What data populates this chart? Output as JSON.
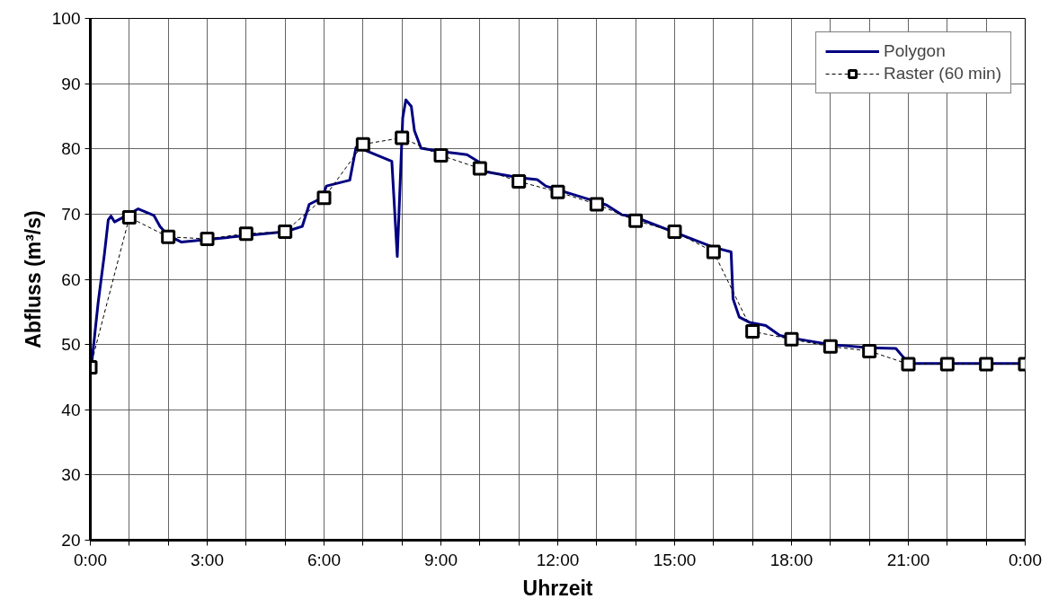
{
  "chart_data": {
    "type": "line",
    "xlabel": "Uhrzeit",
    "ylabel": "Abfluss (m³/s)",
    "xlim": [
      0,
      24
    ],
    "ylim": [
      20,
      100
    ],
    "xticks": [
      {
        "value": 0,
        "label": "0:00"
      },
      {
        "value": 1,
        "label": null
      },
      {
        "value": 2,
        "label": null
      },
      {
        "value": 3,
        "label": "3:00"
      },
      {
        "value": 4,
        "label": null
      },
      {
        "value": 5,
        "label": null
      },
      {
        "value": 6,
        "label": "6:00"
      },
      {
        "value": 7,
        "label": null
      },
      {
        "value": 8,
        "label": null
      },
      {
        "value": 9,
        "label": "9:00"
      },
      {
        "value": 10,
        "label": null
      },
      {
        "value": 11,
        "label": null
      },
      {
        "value": 12,
        "label": "12:00"
      },
      {
        "value": 13,
        "label": null
      },
      {
        "value": 14,
        "label": null
      },
      {
        "value": 15,
        "label": "15:00"
      },
      {
        "value": 16,
        "label": null
      },
      {
        "value": 17,
        "label": null
      },
      {
        "value": 18,
        "label": "18:00"
      },
      {
        "value": 19,
        "label": null
      },
      {
        "value": 20,
        "label": null
      },
      {
        "value": 21,
        "label": "21:00"
      },
      {
        "value": 22,
        "label": null
      },
      {
        "value": 23,
        "label": null
      },
      {
        "value": 24,
        "label": "0:00"
      }
    ],
    "yticks": [
      20,
      30,
      40,
      50,
      60,
      70,
      80,
      90,
      100
    ],
    "grid": true,
    "legend": "top right",
    "series": [
      {
        "name": "Polygon",
        "color": "#000080",
        "marker": "none",
        "line_style": "solid",
        "x": [
          0.04,
          0.2,
          0.36,
          0.46,
          0.53,
          0.62,
          1.0,
          1.23,
          1.63,
          1.79,
          1.98,
          2.34,
          5.0,
          5.44,
          5.62,
          5.95,
          6.06,
          6.66,
          6.82,
          7.0,
          7.74,
          7.88,
          8.02,
          8.1,
          8.24,
          8.32,
          8.49,
          9.0,
          9.67,
          10.0,
          10.15,
          11.0,
          11.47,
          11.69,
          13.0,
          13.25,
          13.64,
          14.0,
          16.0,
          16.45,
          16.5,
          16.66,
          16.92,
          17.34,
          17.7,
          18.0,
          19.0,
          20.0,
          20.68,
          20.88,
          21.0,
          24.0
        ],
        "values": [
          47.4,
          56.4,
          63.8,
          69.1,
          69.7,
          68.8,
          70.0,
          70.8,
          69.8,
          68.1,
          66.8,
          65.7,
          67.3,
          68.1,
          71.5,
          72.5,
          74.3,
          75.2,
          80.2,
          79.9,
          78.1,
          63.5,
          84.8,
          87.5,
          86.5,
          82.8,
          80.1,
          79.6,
          79.1,
          77.9,
          76.5,
          75.6,
          75.3,
          74.3,
          71.9,
          71.4,
          69.9,
          69.5,
          64.9,
          64.2,
          57.0,
          54.2,
          53.4,
          52.9,
          51.4,
          51.0,
          50.0,
          49.5,
          49.4,
          48.0,
          47.1,
          47.1
        ]
      },
      {
        "name": "Raster (60 min)",
        "color": "#000000",
        "marker": "square",
        "line_style": "dashed",
        "x": [
          0,
          1,
          2,
          3,
          4,
          5,
          6,
          7,
          8,
          9,
          10,
          11,
          12,
          13,
          14,
          15,
          16,
          17,
          18,
          19,
          20,
          21,
          22,
          23,
          24
        ],
        "values": [
          46.5,
          69.5,
          66.5,
          66.2,
          67,
          67.3,
          72.5,
          80.7,
          81.7,
          79,
          77,
          75,
          73.4,
          71.5,
          69,
          67.3,
          64.2,
          52,
          50.8,
          49.7,
          49,
          47,
          47,
          47,
          47
        ]
      }
    ]
  }
}
